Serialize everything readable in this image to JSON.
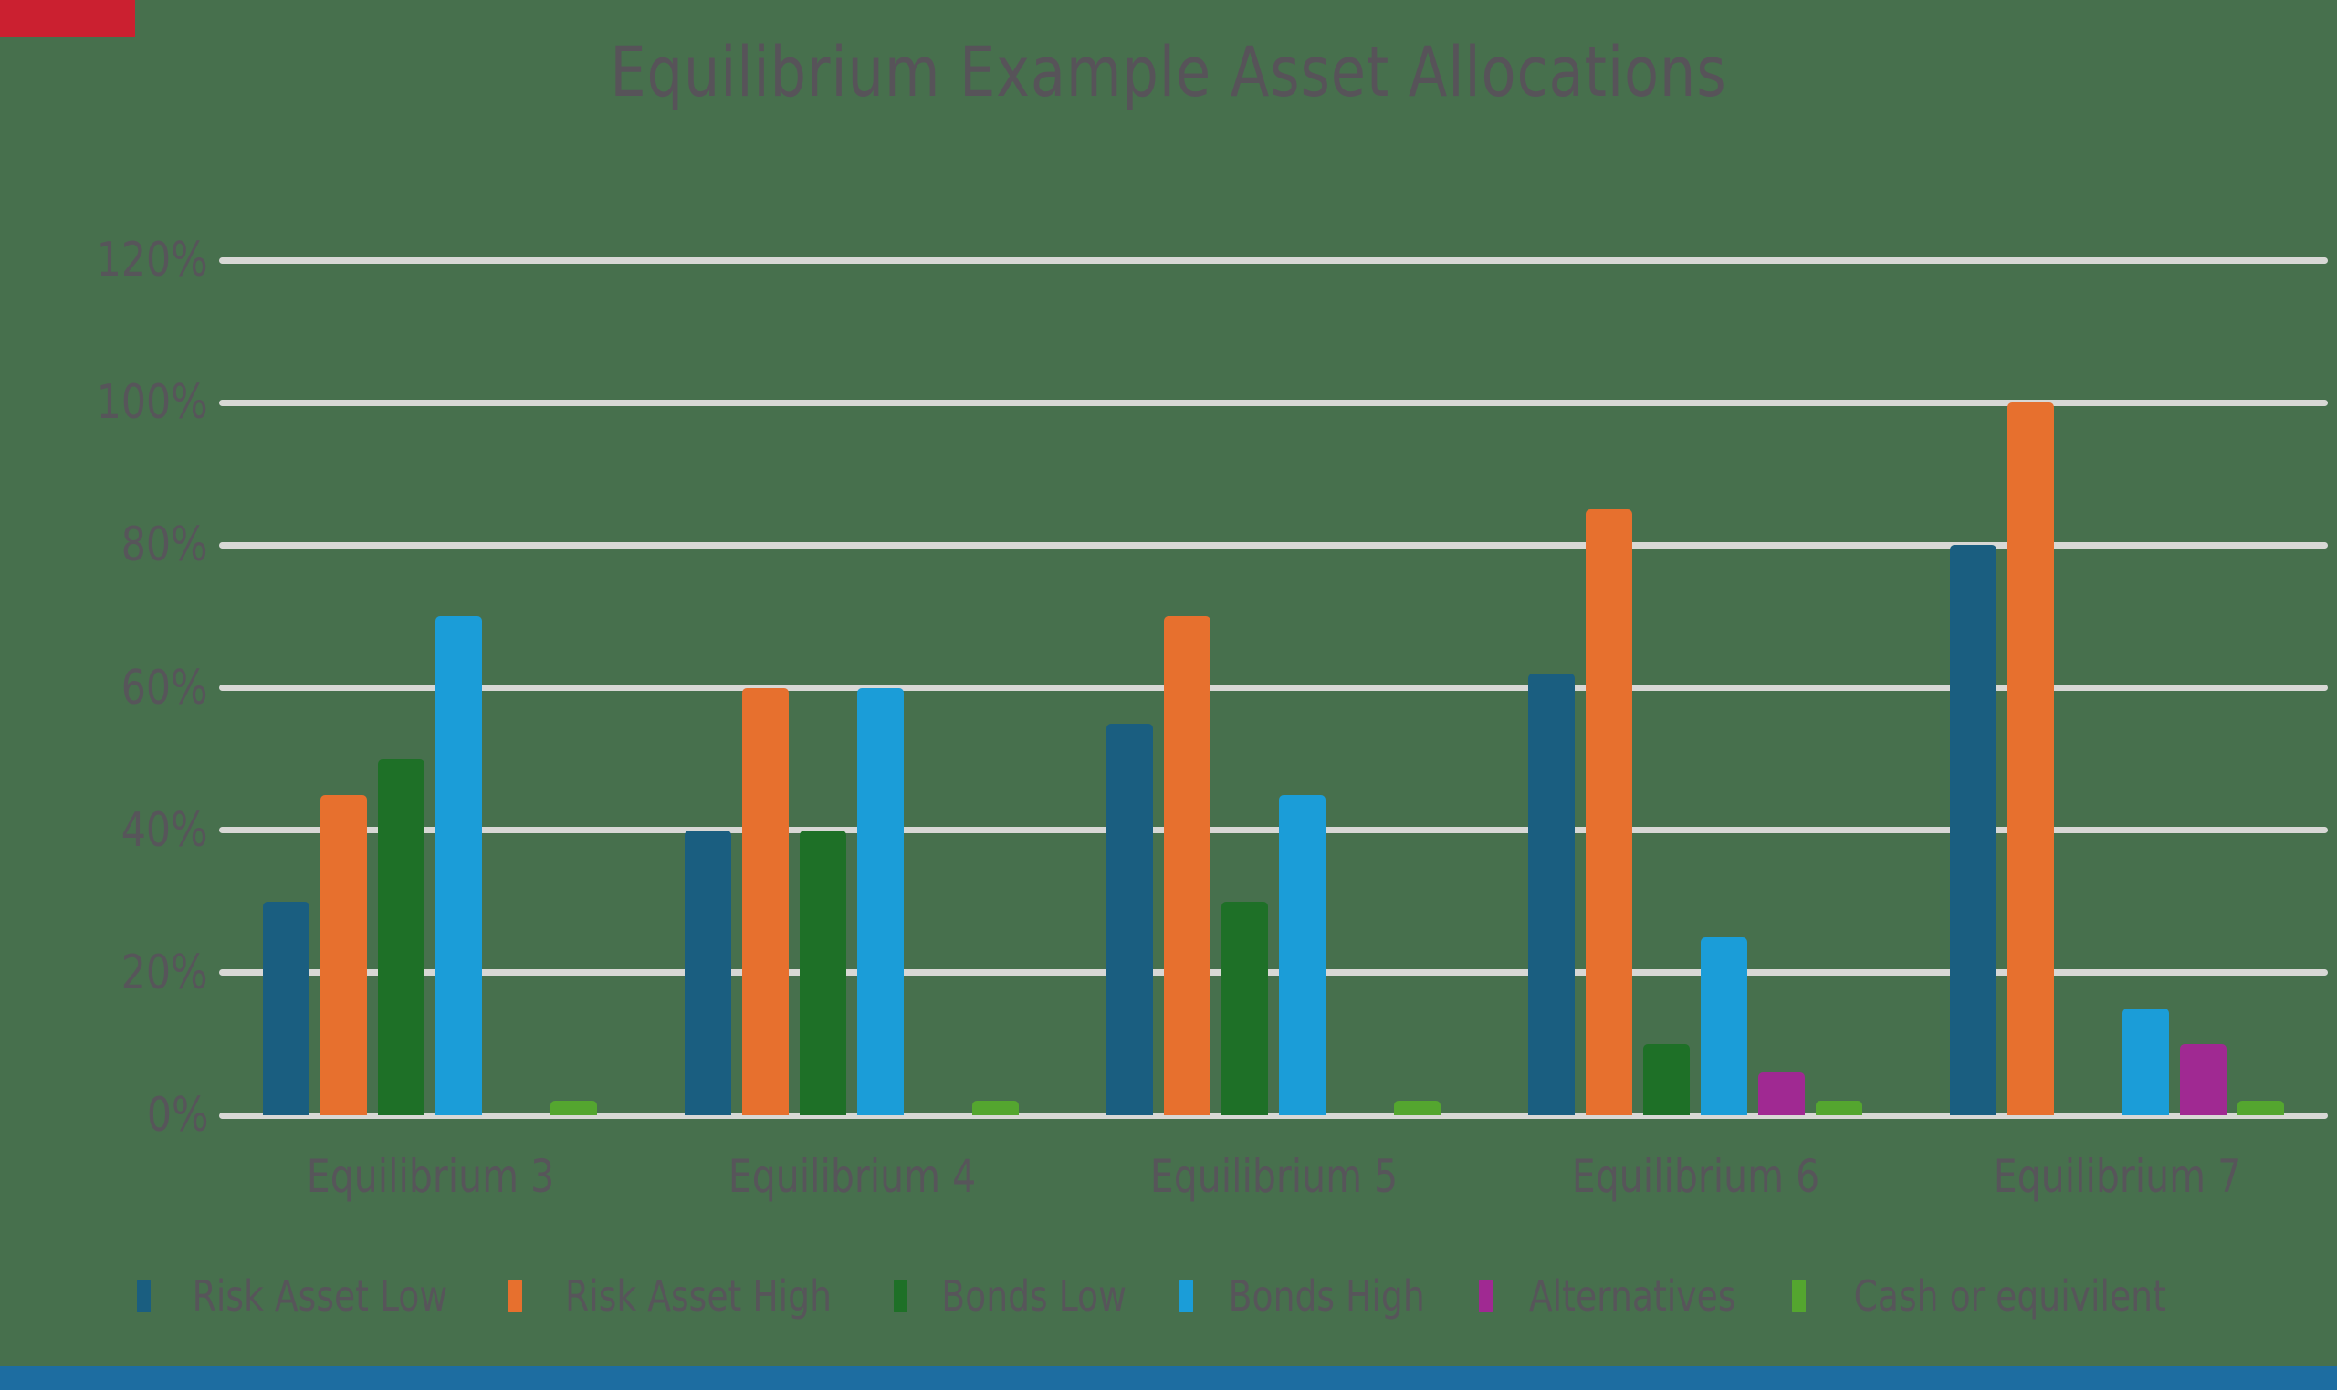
{
  "page": {
    "background_color": "#47704d",
    "corner_accent_color": "#cb2030",
    "bottom_strip_color": "#1d6da1",
    "text_color": "#57555a",
    "gridline_color": "#d8d8d5"
  },
  "title": "Equilibrium Example Asset Allocations",
  "chart_data": {
    "type": "bar",
    "title": "Equilibrium Example Asset Allocations",
    "categories": [
      "Equilibrium 3",
      "Equilibrium 4",
      "Equilibrium 5",
      "Equilibrium 6",
      "Equilibrium 7"
    ],
    "series": [
      {
        "name": "Risk Asset Low",
        "color": "#1a5e80",
        "values": [
          30,
          40,
          55,
          62,
          80
        ]
      },
      {
        "name": "Risk Asset High",
        "color": "#e7702e",
        "values": [
          45,
          60,
          70,
          85,
          100
        ]
      },
      {
        "name": "Bonds Low",
        "color": "#1e7027",
        "values": [
          50,
          40,
          30,
          10,
          0
        ]
      },
      {
        "name": "Bonds High",
        "color": "#1b9dd8",
        "values": [
          70,
          60,
          45,
          25,
          15
        ]
      },
      {
        "name": "Alternatives",
        "color": "#a02992",
        "values": [
          0,
          0,
          0,
          6,
          10
        ]
      },
      {
        "name": "Cash or equivilent",
        "color": "#54a62f",
        "values": [
          2,
          2,
          2,
          2,
          2
        ]
      }
    ],
    "ylim": [
      0,
      120
    ],
    "y_tick_step": 20,
    "y_tick_labels": [
      "120%",
      "100%",
      "80%",
      "60%",
      "40%",
      "20%",
      "0%"
    ],
    "xlabel": "",
    "ylabel": "",
    "grid": true,
    "legend_position": "bottom"
  }
}
